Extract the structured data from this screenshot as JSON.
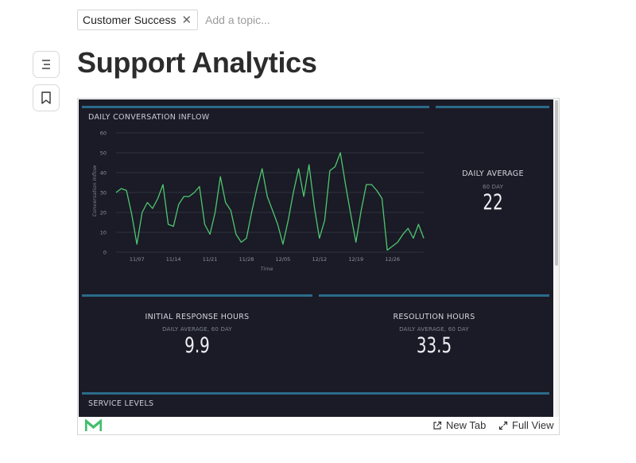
{
  "topics": {
    "chip_label": "Customer Success",
    "remove_glyph": "✕",
    "input_placeholder": "Add a topic..."
  },
  "sidebar": {
    "toc_icon": "list-icon",
    "bookmark_icon": "bookmark-icon"
  },
  "page": {
    "title": "Support Analytics"
  },
  "dashboard": {
    "inflow_title": "DAILY CONVERSATION INFLOW",
    "daily_average": {
      "label": "DAILY AVERAGE",
      "sub": "60 DAY",
      "value": "22"
    },
    "initial_response": {
      "label": "INITIAL RESPONSE HOURS",
      "sub": "DAILY AVERAGE, 60 DAY",
      "value": "9.9"
    },
    "resolution": {
      "label": "RESOLUTION HOURS",
      "sub": "DAILY AVERAGE, 60 DAY",
      "value": "33.5"
    },
    "service_levels_title": "SERVICE LEVELS",
    "colors": {
      "background": "#1a1b26",
      "accent_bar": "#2b6a8a",
      "line": "#4fc66f"
    }
  },
  "chart_data": {
    "type": "line",
    "title": "DAILY CONVERSATION INFLOW",
    "xlabel": "Time",
    "ylabel": "Conversation Inflow",
    "ylim": [
      0,
      60
    ],
    "yticks": [
      0,
      10,
      20,
      30,
      40,
      50,
      60
    ],
    "xtick_labels": [
      "11/07",
      "11/14",
      "11/21",
      "11/28",
      "12/05",
      "12/12",
      "12/19",
      "12/26"
    ],
    "grid": true,
    "series": [
      {
        "values": [
          30,
          32,
          31,
          19,
          4,
          20,
          25,
          22,
          27,
          34,
          14,
          13,
          24,
          28,
          28,
          30,
          33,
          14,
          9,
          20,
          38,
          25,
          21,
          9,
          5,
          7,
          20,
          32,
          42,
          28,
          21,
          14,
          4,
          16,
          30,
          42,
          28,
          44,
          23,
          7,
          16,
          41,
          43,
          50,
          34,
          19,
          5,
          21,
          34,
          34,
          31,
          27,
          1,
          3,
          5,
          9,
          12,
          7,
          14,
          7
        ]
      }
    ]
  },
  "footer": {
    "logo_icon": "metabase-logo-icon",
    "new_tab_label": "New Tab",
    "full_view_label": "Full View"
  }
}
